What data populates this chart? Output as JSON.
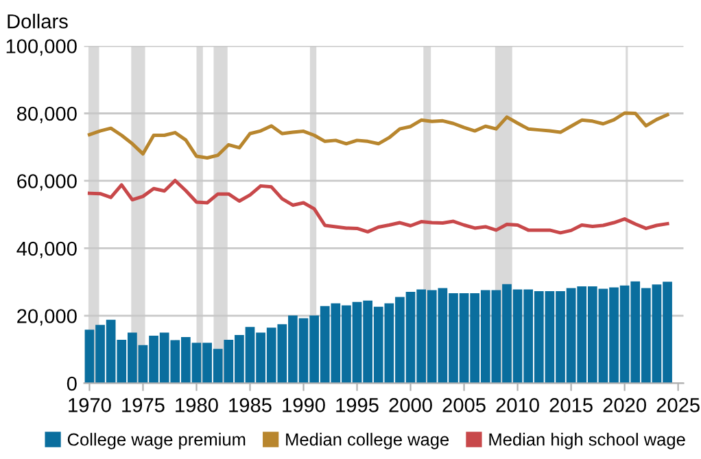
{
  "chart_data": {
    "type": "bar",
    "ylabel": "Dollars",
    "x": [
      1970,
      1971,
      1972,
      1973,
      1974,
      1975,
      1976,
      1977,
      1978,
      1979,
      1980,
      1981,
      1982,
      1983,
      1984,
      1985,
      1986,
      1987,
      1988,
      1989,
      1990,
      1991,
      1992,
      1993,
      1994,
      1995,
      1996,
      1997,
      1998,
      1999,
      2000,
      2001,
      2002,
      2003,
      2004,
      2005,
      2006,
      2007,
      2008,
      2009,
      2010,
      2011,
      2012,
      2013,
      2014,
      2015,
      2016,
      2017,
      2018,
      2019,
      2020,
      2021,
      2022,
      2023,
      2024
    ],
    "series": [
      {
        "name": "College wage premium",
        "color": "#0a6e9e",
        "values": [
          15900,
          17300,
          18800,
          12900,
          15000,
          11300,
          14100,
          15000,
          12800,
          13700,
          12000,
          12000,
          10200,
          12900,
          14300,
          16700,
          15000,
          16500,
          17500,
          20100,
          19300,
          20100,
          22900,
          23700,
          23100,
          24100,
          24500,
          22700,
          23700,
          25600,
          27100,
          27800,
          27600,
          28200,
          26700,
          26700,
          26700,
          27600,
          27600,
          29400,
          27800,
          27800,
          27300,
          27300,
          27300,
          28200,
          28700,
          28700,
          28000,
          28400,
          29000,
          30200,
          28200,
          29300,
          30100
        ]
      },
      {
        "name": "Median college wage",
        "type": "line",
        "color": "#b8862e",
        "values": [
          73700,
          74800,
          75600,
          73500,
          71000,
          68000,
          73500,
          73500,
          74300,
          72100,
          67300,
          66800,
          67600,
          70700,
          69800,
          74000,
          74800,
          76300,
          74000,
          74400,
          74700,
          73500,
          71700,
          72000,
          71000,
          72000,
          71700,
          71000,
          72800,
          75400,
          76100,
          78000,
          77600,
          77800,
          77000,
          75800,
          74800,
          76200,
          75400,
          78900,
          77100,
          75400,
          75100,
          74800,
          74400,
          76200,
          78000,
          77700,
          76900,
          78100,
          80100,
          80000,
          76300,
          78200,
          79600
        ]
      },
      {
        "name": "Median high school wage",
        "type": "line",
        "color": "#c8484a",
        "values": [
          56300,
          56200,
          55100,
          58800,
          54400,
          55400,
          57700,
          57000,
          60100,
          57100,
          53700,
          53500,
          56100,
          56100,
          54000,
          55800,
          58500,
          58200,
          54700,
          52800,
          53500,
          51700,
          46800,
          46400,
          46000,
          45900,
          44900,
          46300,
          46900,
          47600,
          46700,
          47900,
          47600,
          47500,
          48000,
          46900,
          46000,
          46400,
          45400,
          47100,
          46900,
          45400,
          45400,
          45400,
          44600,
          45300,
          46900,
          46500,
          46800,
          47600,
          48700,
          47200,
          45900,
          46800,
          47300
        ]
      }
    ],
    "bands": [
      {
        "axis": "x",
        "from": 1969.9,
        "to": 1970.9,
        "color": "#d9d9d9"
      },
      {
        "axis": "x",
        "from": 1973.9,
        "to": 1975.2,
        "color": "#d9d9d9"
      },
      {
        "axis": "x",
        "from": 1980.0,
        "to": 1980.6,
        "color": "#d9d9d9"
      },
      {
        "axis": "x",
        "from": 1981.6,
        "to": 1982.9,
        "color": "#d9d9d9"
      },
      {
        "axis": "x",
        "from": 1990.6,
        "to": 1991.2,
        "color": "#d9d9d9"
      },
      {
        "axis": "x",
        "from": 2001.2,
        "to": 2001.9,
        "color": "#d9d9d9"
      },
      {
        "axis": "x",
        "from": 2007.9,
        "to": 2009.5,
        "color": "#d9d9d9"
      },
      {
        "axis": "x",
        "from": 2020.1,
        "to": 2020.3,
        "color": "#d9d9d9"
      }
    ],
    "xlim": [
      1969.5,
      2025.5
    ],
    "xticks": [
      1970,
      1975,
      1980,
      1985,
      1990,
      1995,
      2000,
      2005,
      2010,
      2015,
      2020,
      2025
    ],
    "ylim": [
      0,
      100000
    ],
    "yticks": [
      {
        "value": 0,
        "label": "0"
      },
      {
        "value": 20000,
        "label": "20,000"
      },
      {
        "value": 40000,
        "label": "40,000"
      },
      {
        "value": 60000,
        "label": "60,000"
      },
      {
        "value": 80000,
        "label": "80,000"
      },
      {
        "value": 100000,
        "label": "100,000"
      }
    ],
    "grid": "y",
    "legend": "bottom",
    "marker": "none",
    "line_style": "solid"
  }
}
